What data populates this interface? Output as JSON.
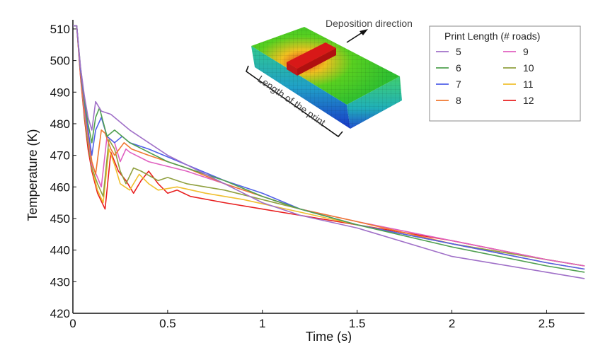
{
  "chart_data": {
    "type": "line",
    "xlabel": "Time (s)",
    "ylabel": "Temperature (K)",
    "xlim": [
      0,
      2.7
    ],
    "ylim": [
      420,
      512
    ],
    "xticks": [
      "0",
      "0.5",
      "1",
      "1.5",
      "2",
      "2.5"
    ],
    "yticks": [
      "420",
      "430",
      "440",
      "450",
      "460",
      "470",
      "480",
      "490",
      "500",
      "510"
    ],
    "grid": false,
    "legend": {
      "title": "Print Length (# roads)",
      "position": "top-right",
      "columns": 2
    },
    "annotations": {
      "deposition": "Deposition direction",
      "length": "Length of the print"
    },
    "series": [
      {
        "name": "5",
        "color": "#a070c8",
        "x": [
          0.0,
          0.02,
          0.04,
          0.06,
          0.08,
          0.1,
          0.12,
          0.15,
          0.2,
          0.3,
          0.5,
          0.8,
          1.0,
          1.2,
          1.5,
          2.0,
          2.5,
          2.7
        ],
        "y": [
          511,
          511,
          498,
          489,
          482,
          478,
          487,
          484,
          483,
          478,
          470,
          461,
          455,
          451,
          447,
          438,
          433,
          431
        ]
      },
      {
        "name": "6",
        "color": "#50a050",
        "x": [
          0.0,
          0.02,
          0.04,
          0.06,
          0.08,
          0.1,
          0.12,
          0.14,
          0.18,
          0.22,
          0.3,
          0.5,
          0.8,
          1.0,
          1.2,
          1.5,
          2.0,
          2.5,
          2.7
        ],
        "y": [
          511,
          511,
          498,
          488,
          480,
          474,
          482,
          485,
          476,
          478,
          474,
          468,
          462,
          457,
          453,
          448,
          441,
          435,
          433
        ]
      },
      {
        "name": "7",
        "color": "#5060e8",
        "x": [
          0.0,
          0.02,
          0.04,
          0.06,
          0.08,
          0.1,
          0.12,
          0.15,
          0.18,
          0.22,
          0.26,
          0.3,
          0.4,
          0.6,
          0.8,
          1.0,
          1.2,
          1.5,
          2.0,
          2.5,
          2.7
        ],
        "y": [
          511,
          511,
          497,
          487,
          478,
          470,
          478,
          482,
          476,
          474,
          476,
          474,
          472,
          467,
          462,
          458,
          453,
          448,
          442,
          436,
          434
        ]
      },
      {
        "name": "8",
        "color": "#f07830",
        "x": [
          0.0,
          0.02,
          0.04,
          0.06,
          0.08,
          0.1,
          0.12,
          0.15,
          0.17,
          0.2,
          0.22,
          0.27,
          0.31,
          0.4,
          0.6,
          0.8,
          1.0,
          1.2,
          1.5,
          2.0,
          2.5,
          2.7
        ],
        "y": [
          511,
          511,
          496,
          485,
          477,
          468,
          464,
          478,
          477,
          472,
          470,
          474,
          472,
          470,
          466,
          461,
          457,
          453,
          449,
          442,
          436,
          434
        ]
      },
      {
        "name": "9",
        "color": "#e060c0",
        "x": [
          0.0,
          0.02,
          0.04,
          0.06,
          0.08,
          0.1,
          0.13,
          0.15,
          0.18,
          0.22,
          0.25,
          0.28,
          0.3,
          0.4,
          0.6,
          0.8,
          1.0,
          1.2,
          1.5,
          2.0,
          2.5,
          2.7
        ],
        "y": [
          511,
          511,
          496,
          484,
          476,
          467,
          463,
          460,
          476,
          474,
          468,
          472,
          471,
          468,
          465,
          461,
          457,
          453,
          449,
          443,
          437,
          435
        ]
      },
      {
        "name": "10",
        "color": "#90a040",
        "x": [
          0.0,
          0.02,
          0.04,
          0.06,
          0.08,
          0.1,
          0.13,
          0.16,
          0.19,
          0.22,
          0.25,
          0.28,
          0.32,
          0.36,
          0.45,
          0.5,
          0.6,
          0.8,
          1.0,
          1.2,
          1.5,
          2.0,
          2.5,
          2.7
        ],
        "y": [
          511,
          511,
          496,
          483,
          474,
          466,
          461,
          457,
          475,
          472,
          465,
          461,
          466,
          465,
          462,
          463,
          461,
          459,
          456,
          453,
          448,
          442,
          437,
          435
        ]
      },
      {
        "name": "11",
        "color": "#f0c030",
        "x": [
          0.0,
          0.02,
          0.04,
          0.06,
          0.08,
          0.1,
          0.13,
          0.16,
          0.19,
          0.22,
          0.25,
          0.3,
          0.35,
          0.4,
          0.45,
          0.55,
          0.7,
          0.9,
          1.2,
          1.5,
          2.0,
          2.5,
          2.7
        ],
        "y": [
          511,
          511,
          496,
          483,
          474,
          466,
          459,
          455,
          472,
          467,
          461,
          459,
          464,
          461,
          459,
          460,
          458,
          456,
          452,
          448,
          442,
          437,
          435
        ]
      },
      {
        "name": "12",
        "color": "#e82020",
        "x": [
          0.0,
          0.02,
          0.04,
          0.06,
          0.08,
          0.1,
          0.13,
          0.17,
          0.2,
          0.24,
          0.28,
          0.32,
          0.36,
          0.4,
          0.45,
          0.5,
          0.55,
          0.62,
          0.8,
          1.0,
          1.2,
          1.5,
          2.0,
          2.5,
          2.7
        ],
        "y": [
          511,
          511,
          495,
          482,
          472,
          465,
          458,
          453,
          471,
          465,
          462,
          458,
          462,
          465,
          461,
          458,
          459,
          457,
          455,
          453,
          451,
          448,
          443,
          437,
          435
        ]
      }
    ]
  }
}
